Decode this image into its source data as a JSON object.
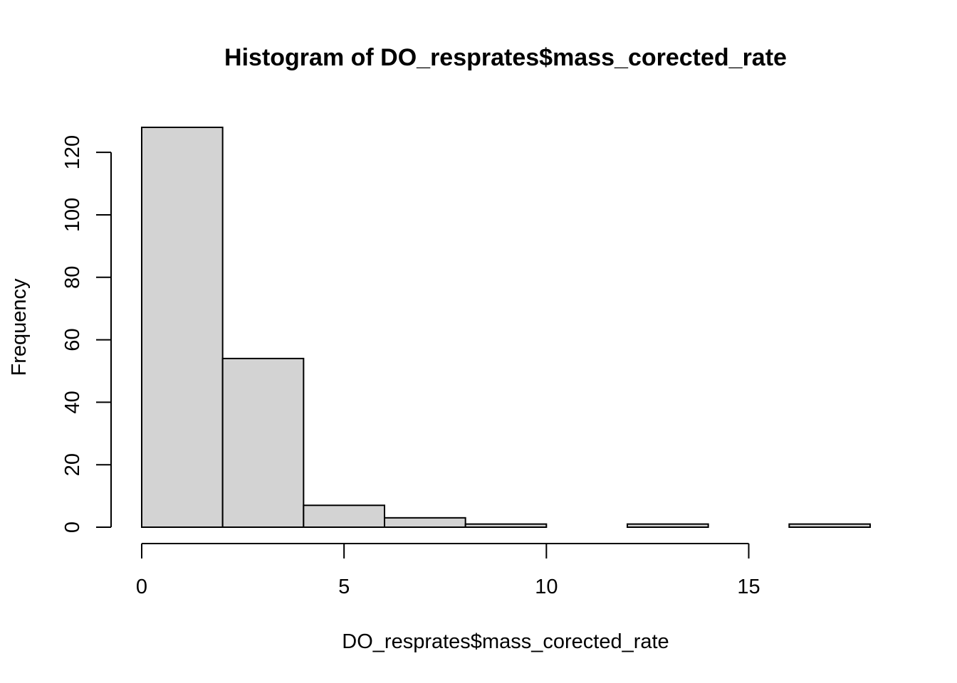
{
  "chart_data": {
    "type": "bar",
    "title": "Histogram of DO_resprates$mass_corected_rate",
    "xlabel": "DO_resprates$mass_corected_rate",
    "ylabel": "Frequency",
    "bins": [
      {
        "start": 0,
        "end": 2,
        "count": 128
      },
      {
        "start": 2,
        "end": 4,
        "count": 54
      },
      {
        "start": 4,
        "end": 6,
        "count": 7
      },
      {
        "start": 6,
        "end": 8,
        "count": 3
      },
      {
        "start": 8,
        "end": 10,
        "count": 1
      },
      {
        "start": 10,
        "end": 12,
        "count": 0
      },
      {
        "start": 12,
        "end": 14,
        "count": 1
      },
      {
        "start": 14,
        "end": 16,
        "count": 0
      },
      {
        "start": 16,
        "end": 18,
        "count": 1
      }
    ],
    "xlim": [
      0,
      18
    ],
    "ylim": [
      0,
      128
    ],
    "x_ticks": [
      0,
      5,
      10,
      15
    ],
    "y_ticks": [
      0,
      20,
      40,
      60,
      80,
      100,
      120
    ],
    "bar_color": "#d3d3d3",
    "grid": false
  }
}
